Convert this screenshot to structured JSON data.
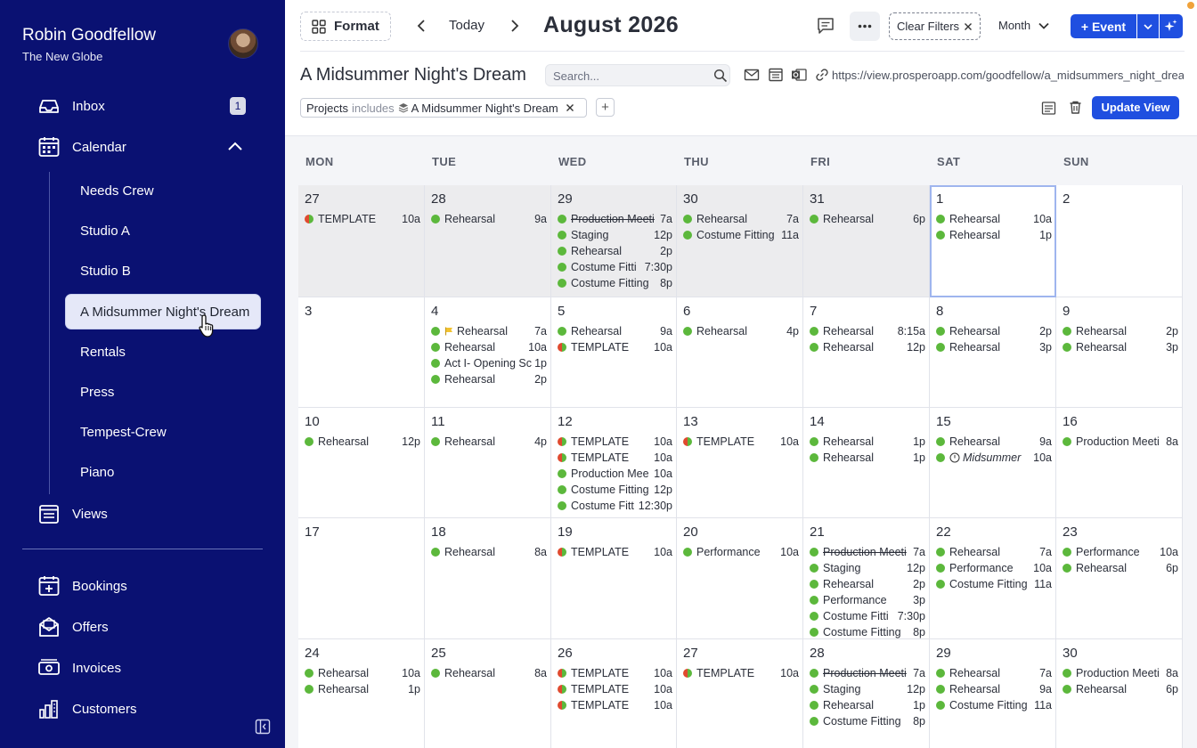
{
  "user": {
    "name": "Robin Goodfellow",
    "org": "The New Globe"
  },
  "nav": {
    "inbox": {
      "label": "Inbox",
      "badge": "1"
    },
    "calendar": {
      "label": "Calendar"
    },
    "sub_items": [
      "Needs Crew",
      "Studio A",
      "Studio B",
      "A Midsummer Night's Dream",
      "Rentals",
      "Press",
      "Tempest-Crew",
      "Piano"
    ],
    "views": {
      "label": "Views"
    },
    "bookings": {
      "label": "Bookings"
    },
    "offers": {
      "label": "Offers"
    },
    "invoices": {
      "label": "Invoices"
    },
    "customers": {
      "label": "Customers"
    }
  },
  "toolbar": {
    "format_label": "Format",
    "today_label": "Today",
    "month_title": "August 2026",
    "clear_filters_label": "Clear Filters",
    "view_mode": "Month",
    "event_label": "+ Event"
  },
  "view": {
    "title": "A Midsummer Night's Dream",
    "search_placeholder": "Search...",
    "url": "https://view.prosperoapp.com/goodfellow/a_midsummers_night_dream",
    "filter": {
      "field": "Projects",
      "op": "includes",
      "value": "A Midsummer Night's Dream"
    },
    "update_label": "Update View"
  },
  "calendar": {
    "weekdays": [
      "MON",
      "TUE",
      "WED",
      "THU",
      "FRI",
      "SAT",
      "SUN"
    ],
    "weeks": [
      [
        {
          "day": "27",
          "past": true,
          "events": [
            {
              "title": "TEMPLATE",
              "time": "10a",
              "dot": "split"
            }
          ]
        },
        {
          "day": "28",
          "past": true,
          "events": [
            {
              "title": "Rehearsal",
              "time": "9a"
            }
          ]
        },
        {
          "day": "29",
          "past": true,
          "events": [
            {
              "title": "Production Meeti",
              "time": "7a",
              "strike": true
            },
            {
              "title": "Staging",
              "time": "12p"
            },
            {
              "title": "Rehearsal",
              "time": "2p"
            },
            {
              "title": "Costume Fitti",
              "time": "7:30p"
            },
            {
              "title": "Costume Fitting",
              "time": "8p"
            }
          ]
        },
        {
          "day": "30",
          "past": true,
          "events": [
            {
              "title": "Rehearsal",
              "time": "7a"
            },
            {
              "title": "Costume Fitting",
              "time": "11a"
            }
          ]
        },
        {
          "day": "31",
          "past": true,
          "events": [
            {
              "title": "Rehearsal",
              "time": "6p"
            }
          ]
        },
        {
          "day": "1",
          "today": true,
          "events": [
            {
              "title": "Rehearsal",
              "time": "10a"
            },
            {
              "title": "Rehearsal",
              "time": "1p"
            }
          ]
        },
        {
          "day": "2",
          "events": []
        }
      ],
      [
        {
          "day": "3",
          "events": []
        },
        {
          "day": "4",
          "events": [
            {
              "title": "Rehearsal",
              "time": "7a",
              "flag": true
            },
            {
              "title": "Rehearsal",
              "time": "10a"
            },
            {
              "title": "Act I- Opening Sc",
              "time": "1p"
            },
            {
              "title": "Rehearsal",
              "time": "2p"
            }
          ]
        },
        {
          "day": "5",
          "events": [
            {
              "title": "Rehearsal",
              "time": "9a"
            },
            {
              "title": "TEMPLATE",
              "time": "10a",
              "dot": "split"
            }
          ]
        },
        {
          "day": "6",
          "events": [
            {
              "title": "Rehearsal",
              "time": "4p"
            }
          ]
        },
        {
          "day": "7",
          "events": [
            {
              "title": "Rehearsal",
              "time": "8:15a"
            },
            {
              "title": "Rehearsal",
              "time": "12p"
            }
          ]
        },
        {
          "day": "8",
          "events": [
            {
              "title": "Rehearsal",
              "time": "2p"
            },
            {
              "title": "Rehearsal",
              "time": "3p"
            }
          ]
        },
        {
          "day": "9",
          "events": [
            {
              "title": "Rehearsal",
              "time": "2p"
            },
            {
              "title": "Rehearsal",
              "time": "3p"
            }
          ]
        }
      ],
      [
        {
          "day": "10",
          "events": [
            {
              "title": "Rehearsal",
              "time": "12p"
            }
          ]
        },
        {
          "day": "11",
          "events": [
            {
              "title": "Rehearsal",
              "time": "4p"
            }
          ]
        },
        {
          "day": "12",
          "events": [
            {
              "title": "TEMPLATE",
              "time": "10a",
              "dot": "split"
            },
            {
              "title": "TEMPLATE",
              "time": "10a",
              "dot": "split"
            },
            {
              "title": "Production Mee",
              "time": "10a"
            },
            {
              "title": "Costume Fitting",
              "time": "12p"
            },
            {
              "title": "Costume Fitt",
              "time": "12:30p"
            }
          ]
        },
        {
          "day": "13",
          "events": [
            {
              "title": "TEMPLATE",
              "time": "10a",
              "dot": "split"
            }
          ]
        },
        {
          "day": "14",
          "events": [
            {
              "title": "Rehearsal",
              "time": "1p"
            },
            {
              "title": "Rehearsal",
              "time": "1p"
            }
          ]
        },
        {
          "day": "15",
          "events": [
            {
              "title": "Rehearsal",
              "time": "9a"
            },
            {
              "title": "Midsummer",
              "time": "10a",
              "italic": true,
              "clock": true
            }
          ]
        },
        {
          "day": "16",
          "events": [
            {
              "title": "Production Meeti",
              "time": "8a"
            }
          ]
        }
      ],
      [
        {
          "day": "17",
          "events": []
        },
        {
          "day": "18",
          "events": [
            {
              "title": "Rehearsal",
              "time": "8a"
            }
          ]
        },
        {
          "day": "19",
          "events": [
            {
              "title": "TEMPLATE",
              "time": "10a",
              "dot": "split"
            }
          ]
        },
        {
          "day": "20",
          "events": [
            {
              "title": "Performance",
              "time": "10a"
            }
          ]
        },
        {
          "day": "21",
          "events": [
            {
              "title": "Production Meeti",
              "time": "7a",
              "strike": true
            },
            {
              "title": "Staging",
              "time": "12p"
            },
            {
              "title": "Rehearsal",
              "time": "2p"
            },
            {
              "title": "Performance",
              "time": "3p"
            },
            {
              "title": "Costume Fitti",
              "time": "7:30p"
            },
            {
              "title": "Costume Fitting",
              "time": "8p"
            }
          ]
        },
        {
          "day": "22",
          "events": [
            {
              "title": "Rehearsal",
              "time": "7a"
            },
            {
              "title": "Performance",
              "time": "10a"
            },
            {
              "title": "Costume Fitting",
              "time": "11a"
            }
          ]
        },
        {
          "day": "23",
          "events": [
            {
              "title": "Performance",
              "time": "10a"
            },
            {
              "title": "Rehearsal",
              "time": "6p"
            }
          ]
        }
      ],
      [
        {
          "day": "24",
          "events": [
            {
              "title": "Rehearsal",
              "time": "10a"
            },
            {
              "title": "Rehearsal",
              "time": "1p"
            }
          ]
        },
        {
          "day": "25",
          "events": [
            {
              "title": "Rehearsal",
              "time": "8a"
            }
          ]
        },
        {
          "day": "26",
          "events": [
            {
              "title": "TEMPLATE",
              "time": "10a",
              "dot": "split"
            },
            {
              "title": "TEMPLATE",
              "time": "10a",
              "dot": "split"
            },
            {
              "title": "TEMPLATE",
              "time": "10a",
              "dot": "split"
            }
          ]
        },
        {
          "day": "27",
          "events": [
            {
              "title": "TEMPLATE",
              "time": "10a",
              "dot": "split"
            }
          ]
        },
        {
          "day": "28",
          "events": [
            {
              "title": "Production Meeti",
              "time": "7a",
              "strike": true
            },
            {
              "title": "Staging",
              "time": "12p"
            },
            {
              "title": "Rehearsal",
              "time": "1p"
            },
            {
              "title": "Costume Fitting",
              "time": "8p"
            }
          ]
        },
        {
          "day": "29",
          "events": [
            {
              "title": "Rehearsal",
              "time": "7a"
            },
            {
              "title": "Rehearsal",
              "time": "9a"
            },
            {
              "title": "Costume Fitting",
              "time": "11a"
            }
          ]
        },
        {
          "day": "30",
          "events": [
            {
              "title": "Production Meeti",
              "time": "8a"
            },
            {
              "title": "Rehearsal",
              "time": "6p"
            }
          ]
        }
      ]
    ]
  },
  "colors": {
    "sidebar": "#0a1172",
    "primary": "#1f4fe0",
    "event_green": "#5cb83c",
    "event_red": "#e04a2f"
  }
}
